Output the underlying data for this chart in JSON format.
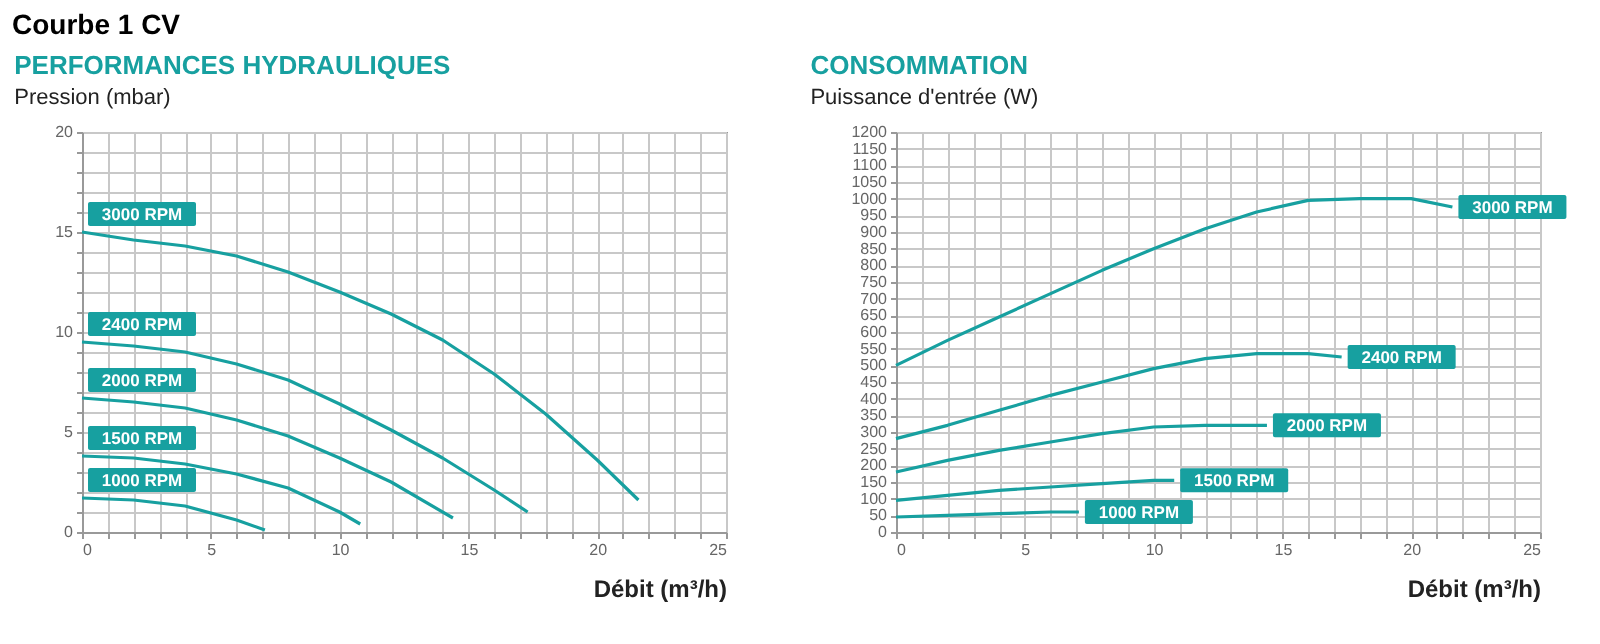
{
  "chart_data": [
    {
      "type": "line",
      "title": "PERFORMANCES HYDRAULIQUES",
      "ylabel": "Pression (mbar)",
      "xlabel": "Débit (m³/h)",
      "annotations": [
        "Courbe 1 CV"
      ],
      "grid": true,
      "legend": false,
      "xlim": [
        0,
        25
      ],
      "xticks": [
        0,
        {
          "value": 1,
          "label": null
        },
        {
          "value": 2,
          "label": null
        },
        {
          "value": 3,
          "label": null
        },
        {
          "value": 4,
          "label": null
        },
        5,
        {
          "value": 6,
          "label": null
        },
        {
          "value": 7,
          "label": null
        },
        {
          "value": 8,
          "label": null
        },
        {
          "value": 9,
          "label": null
        },
        10,
        {
          "value": 11,
          "label": null
        },
        {
          "value": 12,
          "label": null
        },
        {
          "value": 13,
          "label": null
        },
        {
          "value": 14,
          "label": null
        },
        15,
        {
          "value": 16,
          "label": null
        },
        {
          "value": 17,
          "label": null
        },
        {
          "value": 18,
          "label": null
        },
        {
          "value": 19,
          "label": null
        },
        20,
        {
          "value": 21,
          "label": null
        },
        {
          "value": 22,
          "label": null
        },
        {
          "value": 23,
          "label": null
        },
        {
          "value": 24,
          "label": null
        },
        25
      ],
      "ylim": [
        0,
        20
      ],
      "yticks": [
        0,
        {
          "value": 1,
          "label": null
        },
        {
          "value": 2,
          "label": null
        },
        {
          "value": 3,
          "label": null
        },
        {
          "value": 4,
          "label": null
        },
        5,
        {
          "value": 6,
          "label": null
        },
        {
          "value": 7,
          "label": null
        },
        {
          "value": 8,
          "label": null
        },
        {
          "value": 9,
          "label": null
        },
        10,
        {
          "value": 11,
          "label": null
        },
        {
          "value": 12,
          "label": null
        },
        {
          "value": 13,
          "label": null
        },
        {
          "value": 14,
          "label": null
        },
        15,
        {
          "value": 16,
          "label": null
        },
        {
          "value": 17,
          "label": null
        },
        {
          "value": 18,
          "label": null
        },
        {
          "value": 19,
          "label": null
        },
        20
      ],
      "series": [
        {
          "name": "3000 RPM",
          "color": "#17a0a0",
          "x": [
            0,
            2,
            4,
            6,
            8,
            10,
            12,
            14,
            16,
            18,
            20,
            21.6
          ],
          "values": [
            15,
            14.6,
            14.3,
            13.8,
            13.0,
            12.0,
            10.9,
            9.6,
            7.9,
            5.9,
            3.6,
            1.6
          ]
        },
        {
          "name": "2400 RPM",
          "color": "#17a0a0",
          "x": [
            0,
            2,
            4,
            6,
            8,
            10,
            12,
            14,
            16,
            17.3
          ],
          "values": [
            9.5,
            9.3,
            9.0,
            8.4,
            7.6,
            6.4,
            5.1,
            3.7,
            2.1,
            1.0
          ]
        },
        {
          "name": "2000 RPM",
          "color": "#17a0a0",
          "x": [
            0,
            2,
            4,
            6,
            8,
            10,
            12,
            14.4
          ],
          "values": [
            6.7,
            6.5,
            6.2,
            5.6,
            4.8,
            3.7,
            2.5,
            0.7
          ]
        },
        {
          "name": "1500 RPM",
          "color": "#17a0a0",
          "x": [
            0,
            2,
            4,
            6,
            8,
            10,
            10.8
          ],
          "values": [
            3.8,
            3.7,
            3.4,
            2.9,
            2.2,
            1.0,
            0.4
          ]
        },
        {
          "name": "1000 RPM",
          "color": "#17a0a0",
          "x": [
            0,
            2,
            4,
            6,
            7.1
          ],
          "values": [
            1.7,
            1.6,
            1.3,
            0.6,
            0.1
          ]
        }
      ]
    },
    {
      "type": "line",
      "title": "CONSOMMATION",
      "ylabel": "Puissance d'entrée (W)",
      "xlabel": "Débit (m³/h)",
      "grid": true,
      "legend": false,
      "xlim": [
        0,
        25
      ],
      "xticks": [
        0,
        {
          "value": 1,
          "label": null
        },
        {
          "value": 2,
          "label": null
        },
        {
          "value": 3,
          "label": null
        },
        {
          "value": 4,
          "label": null
        },
        5,
        {
          "value": 6,
          "label": null
        },
        {
          "value": 7,
          "label": null
        },
        {
          "value": 8,
          "label": null
        },
        {
          "value": 9,
          "label": null
        },
        10,
        {
          "value": 11,
          "label": null
        },
        {
          "value": 12,
          "label": null
        },
        {
          "value": 13,
          "label": null
        },
        {
          "value": 14,
          "label": null
        },
        15,
        {
          "value": 16,
          "label": null
        },
        {
          "value": 17,
          "label": null
        },
        {
          "value": 18,
          "label": null
        },
        {
          "value": 19,
          "label": null
        },
        20,
        {
          "value": 21,
          "label": null
        },
        {
          "value": 22,
          "label": null
        },
        {
          "value": 23,
          "label": null
        },
        {
          "value": 24,
          "label": null
        },
        25
      ],
      "ylim": [
        0,
        1200
      ],
      "yticks": [
        0,
        50,
        100,
        150,
        200,
        250,
        300,
        350,
        400,
        450,
        500,
        550,
        600,
        650,
        700,
        750,
        800,
        850,
        900,
        950,
        1000,
        1050,
        1100,
        1150,
        1200
      ],
      "series": [
        {
          "name": "3000 RPM",
          "color": "#17a0a0",
          "x": [
            0,
            2,
            4,
            6,
            8,
            10,
            12,
            14,
            16,
            18,
            20,
            21.6
          ],
          "values": [
            500,
            575,
            645,
            715,
            785,
            850,
            910,
            960,
            995,
            1000,
            1000,
            975
          ]
        },
        {
          "name": "2400 RPM",
          "color": "#17a0a0",
          "x": [
            0,
            2,
            4,
            6,
            8,
            10,
            12,
            14,
            16,
            17.3
          ],
          "values": [
            280,
            320,
            365,
            410,
            450,
            490,
            520,
            535,
            535,
            525
          ]
        },
        {
          "name": "2000 RPM",
          "color": "#17a0a0",
          "x": [
            0,
            2,
            4,
            6,
            8,
            10,
            12,
            14.4
          ],
          "values": [
            180,
            215,
            245,
            270,
            295,
            315,
            320,
            320
          ]
        },
        {
          "name": "1500 RPM",
          "color": "#17a0a0",
          "x": [
            0,
            2,
            4,
            6,
            8,
            10,
            10.8
          ],
          "values": [
            95,
            110,
            125,
            135,
            145,
            155,
            155
          ]
        },
        {
          "name": "1000 RPM",
          "color": "#17a0a0",
          "x": [
            0,
            2,
            4,
            6,
            7.1
          ],
          "values": [
            45,
            50,
            55,
            60,
            60
          ]
        }
      ]
    }
  ]
}
